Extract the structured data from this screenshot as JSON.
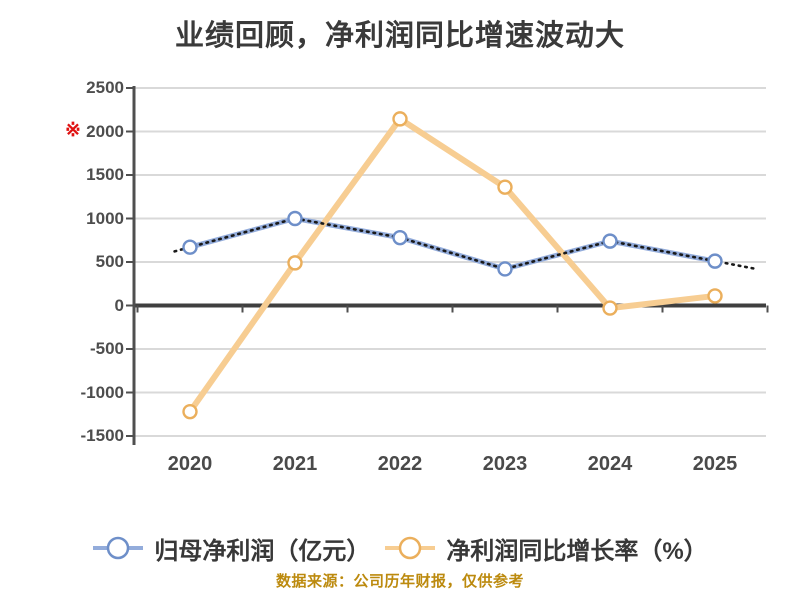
{
  "colors": {
    "background": "#ffffff",
    "gridline": "#d9d9d9",
    "axis": "#4f4f4f",
    "zero_line": "#3f3f3f",
    "title_text": "#3a3a3a",
    "tick_text": "#4d4d4d",
    "caption_text": "#bc8a0e",
    "red_note": "#e01212",
    "trendline_overlay": "#1a1a1a",
    "marker_fill": "#ffffff"
  },
  "red_note": "※",
  "chart_data": {
    "type": "line",
    "title": "业绩回顾，净利润同比增速波动大",
    "caption": "数据来源：公司历年财报，仅供参考",
    "categories": [
      "2020",
      "2021",
      "2022",
      "2023",
      "2024",
      "2025"
    ],
    "series": [
      {
        "name": "归母净利润（亿元）",
        "line_color": "#93acdb",
        "marker_stroke": "#6e8fc9",
        "marker_fill": "#ffffff",
        "overlay": "black-dotted-trendline",
        "values": [
          670,
          1000,
          780,
          420,
          740,
          510
        ]
      },
      {
        "name": "净利润同比增长率（%）",
        "line_color": "#f7cd92",
        "marker_stroke": "#ebaf5c",
        "marker_fill": "#ffffff",
        "overlay": "none",
        "values": [
          -1220,
          490,
          2145,
          1360,
          -30,
          110
        ]
      }
    ],
    "ylim": [
      -1500,
      2500
    ],
    "ytick_step": 500,
    "yticks": [
      "2500",
      "2000",
      "1500",
      "1000",
      "500",
      "0",
      "-500",
      "-1000",
      "-1500"
    ],
    "grid": "horizontal",
    "legend_position": "bottom"
  }
}
